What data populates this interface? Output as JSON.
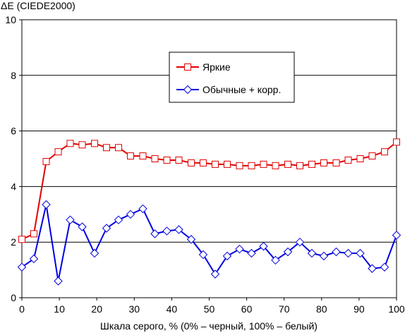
{
  "chart_data": {
    "type": "line",
    "ylabel": "ΔE (CIEDE2000)",
    "xlabel": "Шкала серого, % (0% – черный, 100% – белый)",
    "xlim": [
      0,
      100
    ],
    "ylim": [
      0,
      10
    ],
    "xticks": [
      0,
      10,
      20,
      30,
      40,
      50,
      60,
      70,
      80,
      90,
      100
    ],
    "yticks": [
      0,
      2,
      4,
      6,
      8,
      10
    ],
    "grid": "horizontal",
    "legend_position": "top-center",
    "series": [
      {
        "name": "Яркие",
        "color": "#e00000",
        "marker": "square",
        "x": [
          0,
          3.2,
          6.5,
          9.7,
          12.9,
          16.1,
          19.4,
          22.6,
          25.8,
          29.0,
          32.3,
          35.5,
          38.7,
          41.9,
          45.2,
          48.4,
          51.6,
          54.8,
          58.1,
          61.3,
          64.5,
          67.7,
          71.0,
          74.2,
          77.4,
          80.6,
          83.9,
          87.1,
          90.3,
          93.5,
          96.8,
          100
        ],
        "values": [
          2.1,
          2.3,
          4.9,
          5.25,
          5.55,
          5.5,
          5.55,
          5.4,
          5.4,
          5.1,
          5.1,
          5.0,
          4.95,
          4.95,
          4.85,
          4.85,
          4.8,
          4.8,
          4.75,
          4.75,
          4.8,
          4.75,
          4.8,
          4.75,
          4.8,
          4.85,
          4.85,
          4.95,
          5.0,
          5.1,
          5.25,
          5.6
        ]
      },
      {
        "name": "Обычные + корр.",
        "color": "#0000e0",
        "marker": "diamond",
        "x": [
          0,
          3.2,
          6.5,
          9.7,
          12.9,
          16.1,
          19.4,
          22.6,
          25.8,
          29.0,
          32.3,
          35.5,
          38.7,
          41.9,
          45.2,
          48.4,
          51.6,
          54.8,
          58.1,
          61.3,
          64.5,
          67.7,
          71.0,
          74.2,
          77.4,
          80.6,
          83.9,
          87.1,
          90.3,
          93.5,
          96.8,
          100
        ],
        "values": [
          1.1,
          1.4,
          3.35,
          0.6,
          2.8,
          2.55,
          1.6,
          2.5,
          2.8,
          3.0,
          3.2,
          2.3,
          2.4,
          2.45,
          2.1,
          1.55,
          0.85,
          1.5,
          1.75,
          1.6,
          1.85,
          1.35,
          1.65,
          2.0,
          1.6,
          1.5,
          1.65,
          1.6,
          1.6,
          1.05,
          1.1,
          2.25
        ]
      }
    ]
  }
}
